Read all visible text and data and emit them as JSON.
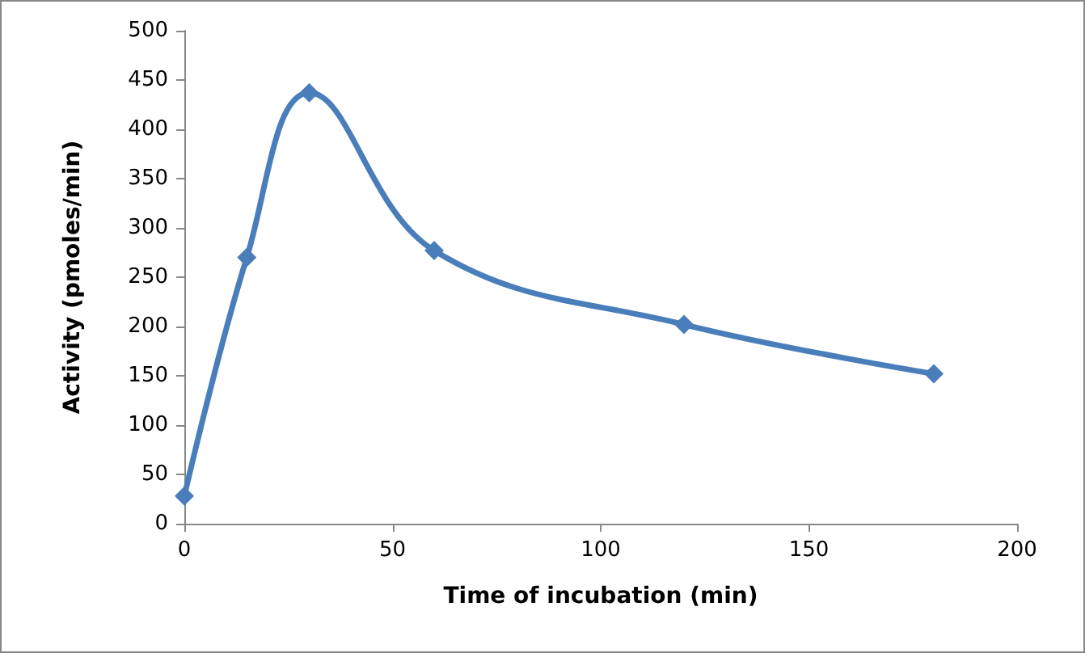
{
  "chart_data": {
    "type": "line",
    "xlabel": "Time of incubation (min)",
    "ylabel": "Activity (pmoles/min)",
    "x": [
      0,
      15,
      30,
      60,
      120,
      180
    ],
    "series": [
      {
        "color": "#4a7ebb",
        "values": [
          28,
          270,
          437,
          277,
          202,
          152
        ]
      }
    ],
    "xlim": [
      0,
      200
    ],
    "xticks": [
      0,
      50,
      100,
      150,
      200
    ],
    "ylim": [
      0,
      500
    ],
    "yticks": [
      0,
      50,
      100,
      150,
      200,
      250,
      300,
      350,
      400,
      450,
      500
    ],
    "grid": false,
    "marker": "diamond",
    "line_style": "solid"
  }
}
